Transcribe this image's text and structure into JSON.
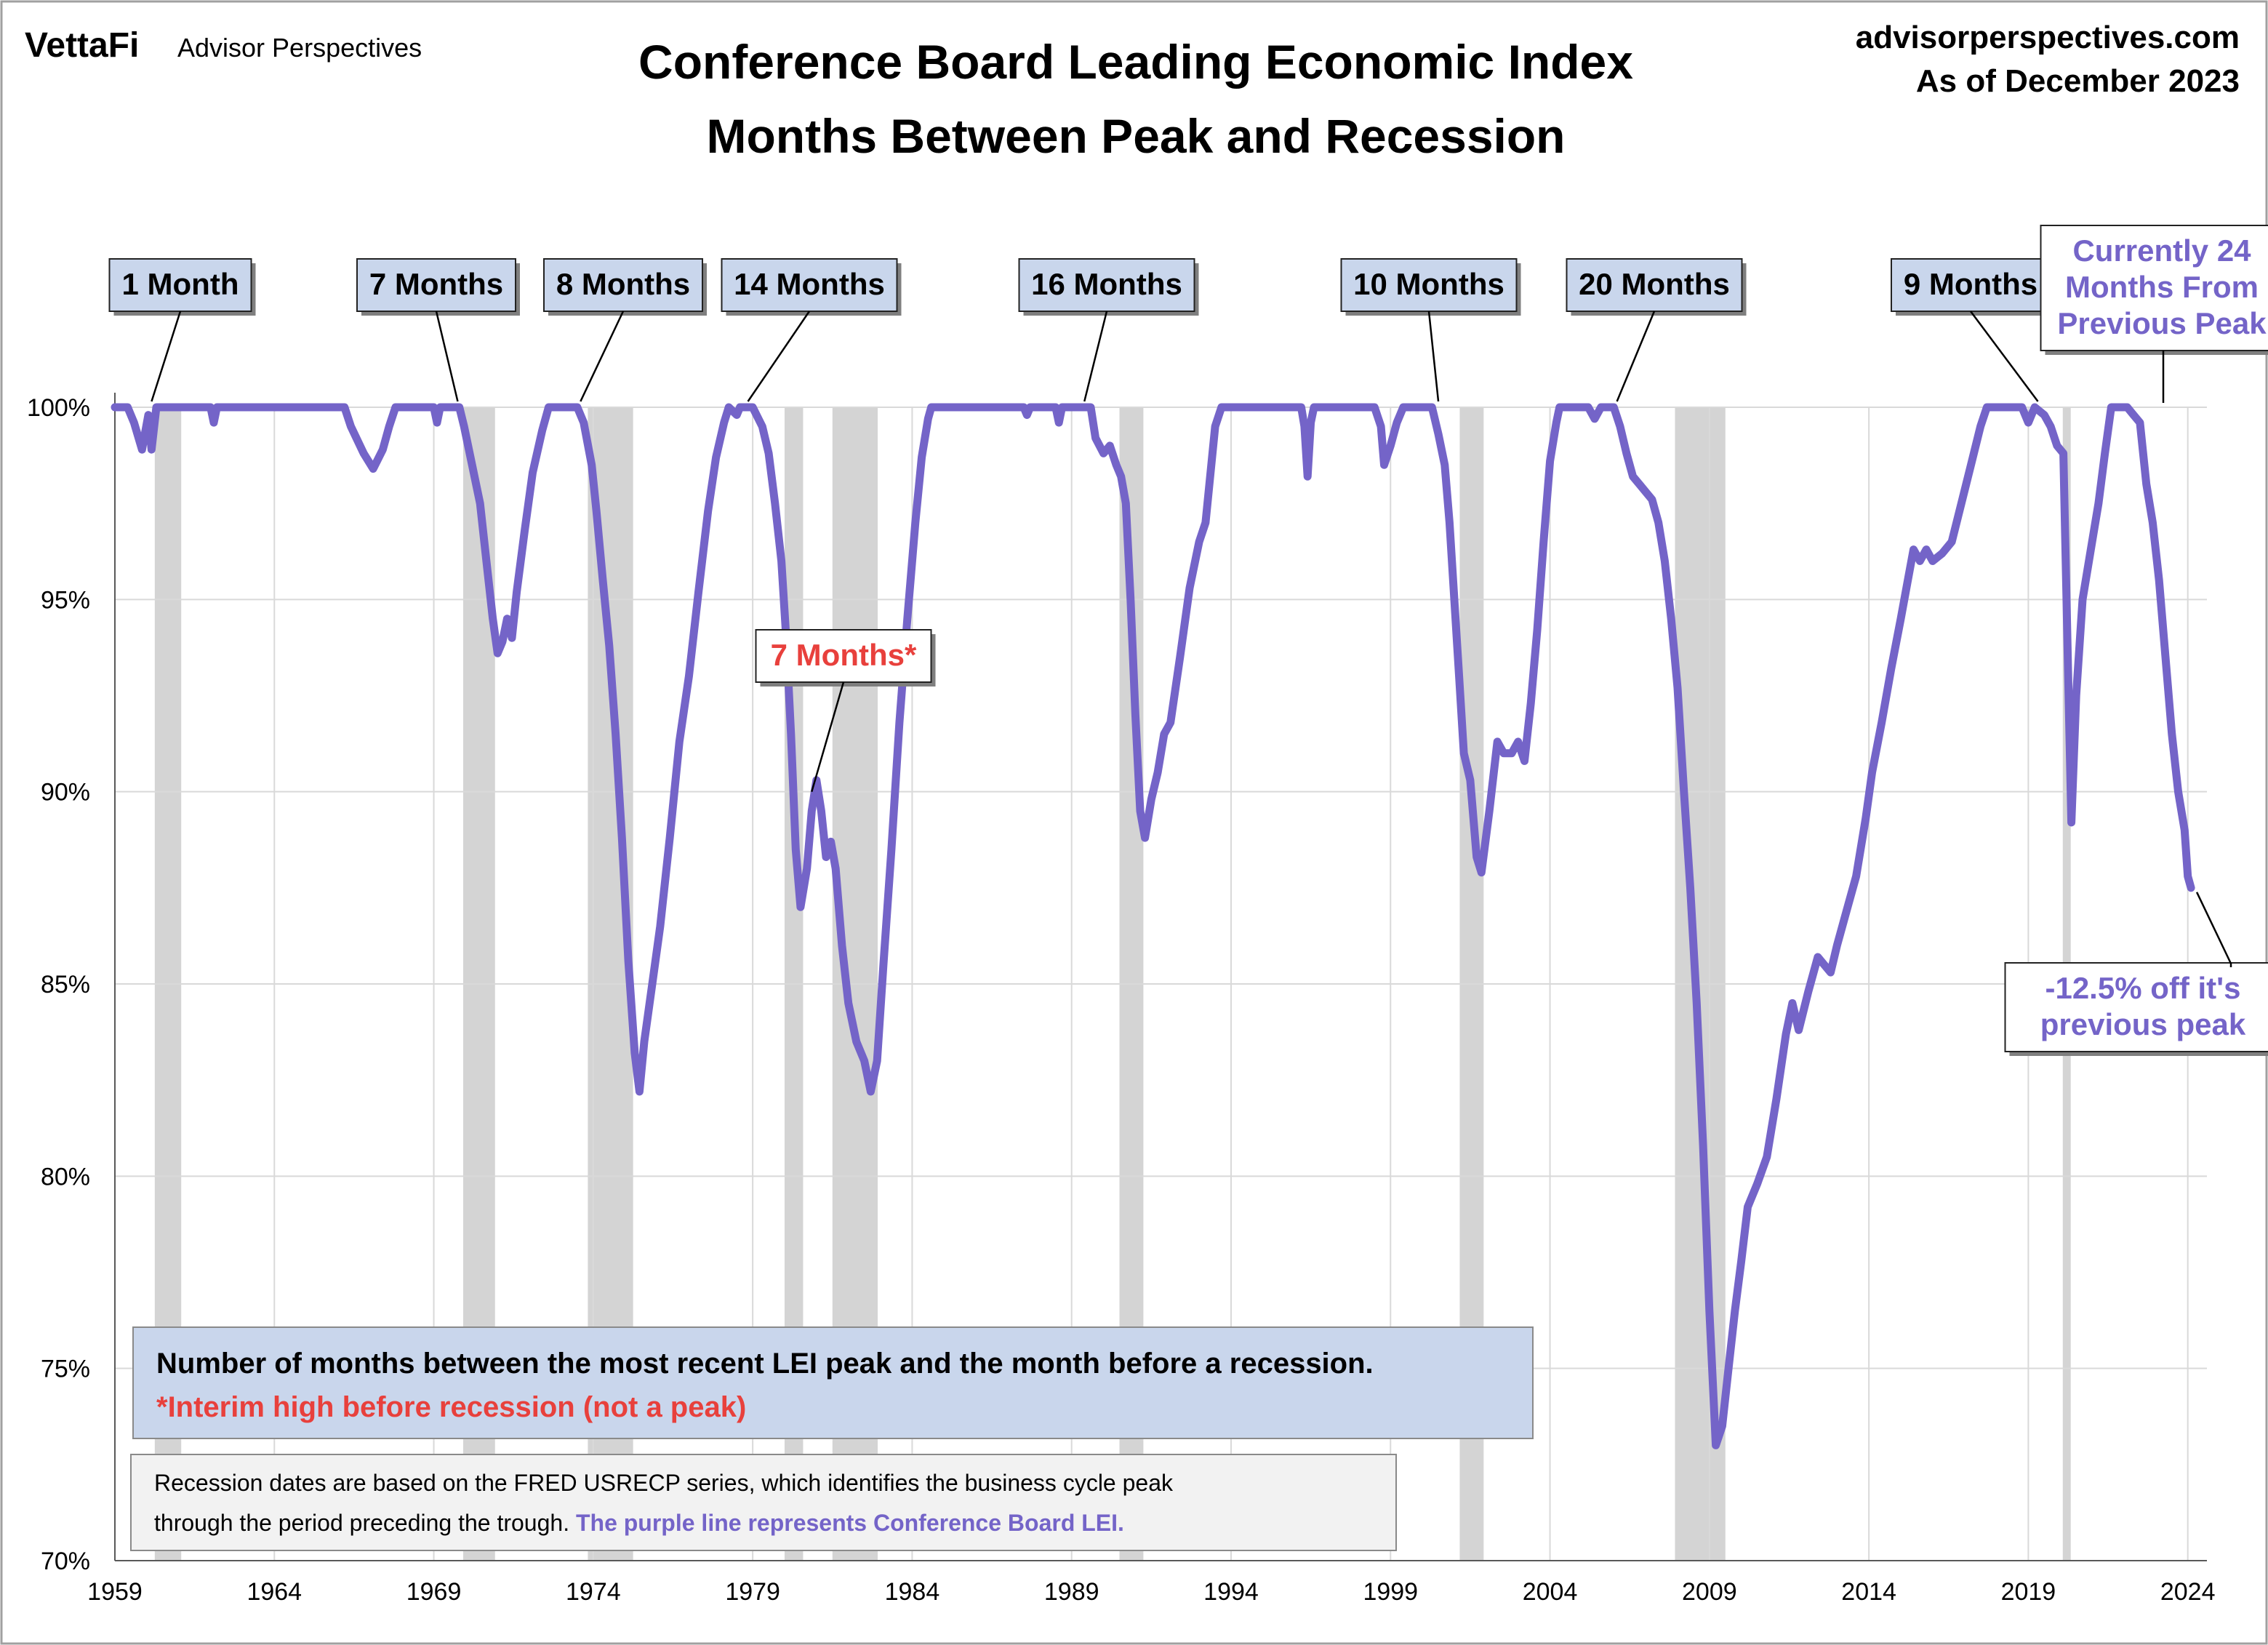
{
  "header": {
    "brand": "VettaFi",
    "brand_sub": "Advisor Perspectives",
    "site": "advisorperspectives.com",
    "as_of": "As of December 2023"
  },
  "colors": {
    "line": "#7464c8",
    "recession": "#d4d4d4",
    "callout_fill": "#c9d6ec",
    "red": "#e8403c",
    "grid": "#d9d9d9"
  },
  "chart_data": {
    "type": "line",
    "title": "Conference Board Leading Economic Index",
    "subtitle": "Months Between Peak and Recession",
    "xlabel": "",
    "ylabel": "",
    "xlim": [
      1959,
      2024.6
    ],
    "ylim": [
      70,
      100
    ],
    "x_ticks": [
      "1959",
      "1964",
      "1969",
      "1974",
      "1979",
      "1984",
      "1989",
      "1994",
      "1999",
      "2004",
      "2009",
      "2014",
      "2019",
      "2024"
    ],
    "y_ticks": [
      "70%",
      "75%",
      "80%",
      "85%",
      "90%",
      "95%",
      "100%"
    ],
    "grid": true,
    "recessions": [
      [
        1960.25,
        1961.08
      ],
      [
        1969.92,
        1970.92
      ],
      [
        1973.83,
        1975.25
      ],
      [
        1980.0,
        1980.58
      ],
      [
        1981.5,
        1982.92
      ],
      [
        1990.5,
        1991.25
      ],
      [
        2001.17,
        2001.92
      ],
      [
        2007.92,
        2009.5
      ],
      [
        2020.08,
        2020.33
      ]
    ],
    "series": [
      {
        "values": [
          [
            1959.0,
            100
          ],
          [
            1959.4,
            100
          ],
          [
            1959.6,
            99.6
          ],
          [
            1959.85,
            98.9
          ],
          [
            1960.05,
            99.8
          ],
          [
            1960.15,
            98.9
          ],
          [
            1960.3,
            100
          ],
          [
            1960.6,
            100
          ],
          [
            1962.0,
            100
          ],
          [
            1962.1,
            99.6
          ],
          [
            1962.2,
            100
          ],
          [
            1966.2,
            100
          ],
          [
            1966.4,
            99.5
          ],
          [
            1966.8,
            98.8
          ],
          [
            1967.1,
            98.4
          ],
          [
            1967.4,
            98.9
          ],
          [
            1967.6,
            99.5
          ],
          [
            1967.8,
            100
          ],
          [
            1969.0,
            100
          ],
          [
            1969.1,
            99.6
          ],
          [
            1969.2,
            100
          ],
          [
            1969.8,
            100
          ],
          [
            1969.95,
            99.5
          ],
          [
            1970.2,
            98.5
          ],
          [
            1970.45,
            97.5
          ],
          [
            1970.65,
            96.0
          ],
          [
            1970.85,
            94.5
          ],
          [
            1971.0,
            93.6
          ],
          [
            1971.15,
            93.9
          ],
          [
            1971.3,
            94.5
          ],
          [
            1971.45,
            94.0
          ],
          [
            1971.6,
            95.2
          ],
          [
            1971.85,
            96.8
          ],
          [
            1972.1,
            98.3
          ],
          [
            1972.4,
            99.4
          ],
          [
            1972.6,
            100
          ],
          [
            1973.5,
            100
          ],
          [
            1973.7,
            99.6
          ],
          [
            1973.95,
            98.5
          ],
          [
            1974.1,
            97.3
          ],
          [
            1974.3,
            95.5
          ],
          [
            1974.5,
            93.8
          ],
          [
            1974.7,
            91.5
          ],
          [
            1974.9,
            88.8
          ],
          [
            1975.1,
            85.6
          ],
          [
            1975.3,
            83.2
          ],
          [
            1975.45,
            82.2
          ],
          [
            1975.6,
            83.5
          ],
          [
            1975.85,
            85.0
          ],
          [
            1976.1,
            86.5
          ],
          [
            1976.4,
            88.8
          ],
          [
            1976.7,
            91.3
          ],
          [
            1977.0,
            93.0
          ],
          [
            1977.3,
            95.2
          ],
          [
            1977.6,
            97.3
          ],
          [
            1977.85,
            98.7
          ],
          [
            1978.1,
            99.6
          ],
          [
            1978.25,
            100
          ],
          [
            1978.5,
            99.8
          ],
          [
            1978.6,
            100
          ],
          [
            1979.0,
            100
          ],
          [
            1979.3,
            99.5
          ],
          [
            1979.5,
            98.8
          ],
          [
            1979.7,
            97.5
          ],
          [
            1979.9,
            96.0
          ],
          [
            1980.05,
            94.0
          ],
          [
            1980.2,
            91.5
          ],
          [
            1980.35,
            88.5
          ],
          [
            1980.5,
            87.0
          ],
          [
            1980.7,
            88.0
          ],
          [
            1980.85,
            89.5
          ],
          [
            1981.0,
            90.3
          ],
          [
            1981.15,
            89.5
          ],
          [
            1981.3,
            88.3
          ],
          [
            1981.45,
            88.7
          ],
          [
            1981.6,
            88.0
          ],
          [
            1981.8,
            86.0
          ],
          [
            1982.0,
            84.5
          ],
          [
            1982.25,
            83.5
          ],
          [
            1982.5,
            83.0
          ],
          [
            1982.7,
            82.2
          ],
          [
            1982.9,
            83.0
          ],
          [
            1983.1,
            85.5
          ],
          [
            1983.35,
            88.5
          ],
          [
            1983.6,
            91.8
          ],
          [
            1983.85,
            94.5
          ],
          [
            1984.1,
            97.0
          ],
          [
            1984.3,
            98.7
          ],
          [
            1984.5,
            99.7
          ],
          [
            1984.6,
            100
          ],
          [
            1987.5,
            100
          ],
          [
            1987.6,
            99.8
          ],
          [
            1987.7,
            100
          ],
          [
            1988.5,
            100
          ],
          [
            1988.6,
            99.6
          ],
          [
            1988.7,
            100
          ],
          [
            1989.6,
            100
          ],
          [
            1989.75,
            99.2
          ],
          [
            1990.0,
            98.8
          ],
          [
            1990.2,
            99.0
          ],
          [
            1990.4,
            98.5
          ],
          [
            1990.55,
            98.2
          ],
          [
            1990.7,
            97.5
          ],
          [
            1990.85,
            95.0
          ],
          [
            1991.0,
            92.0
          ],
          [
            1991.15,
            89.5
          ],
          [
            1991.3,
            88.8
          ],
          [
            1991.5,
            89.8
          ],
          [
            1991.7,
            90.5
          ],
          [
            1991.9,
            91.5
          ],
          [
            1992.1,
            91.8
          ],
          [
            1992.4,
            93.5
          ],
          [
            1992.7,
            95.3
          ],
          [
            1993.0,
            96.5
          ],
          [
            1993.2,
            97.0
          ],
          [
            1993.5,
            99.5
          ],
          [
            1993.7,
            100
          ],
          [
            1996.2,
            100
          ],
          [
            1996.3,
            99.5
          ],
          [
            1996.4,
            98.2
          ],
          [
            1996.5,
            99.6
          ],
          [
            1996.6,
            100
          ],
          [
            1998.5,
            100
          ],
          [
            1998.7,
            99.5
          ],
          [
            1998.8,
            98.5
          ],
          [
            1999.0,
            99.0
          ],
          [
            1999.2,
            99.6
          ],
          [
            1999.4,
            100
          ],
          [
            2000.3,
            100
          ],
          [
            2000.5,
            99.3
          ],
          [
            2000.7,
            98.5
          ],
          [
            2000.85,
            97.0
          ],
          [
            2001.0,
            95.0
          ],
          [
            2001.15,
            93.0
          ],
          [
            2001.3,
            91.0
          ],
          [
            2001.5,
            90.3
          ],
          [
            2001.7,
            88.3
          ],
          [
            2001.85,
            87.9
          ],
          [
            2002.1,
            89.5
          ],
          [
            2002.35,
            91.3
          ],
          [
            2002.55,
            91.0
          ],
          [
            2002.8,
            91.0
          ],
          [
            2003.0,
            91.3
          ],
          [
            2003.2,
            90.8
          ],
          [
            2003.4,
            92.3
          ],
          [
            2003.6,
            94.2
          ],
          [
            2003.8,
            96.5
          ],
          [
            2004.0,
            98.6
          ],
          [
            2004.2,
            99.6
          ],
          [
            2004.3,
            100
          ],
          [
            2005.2,
            100
          ],
          [
            2005.4,
            99.7
          ],
          [
            2005.6,
            100
          ],
          [
            2006.0,
            100
          ],
          [
            2006.2,
            99.5
          ],
          [
            2006.4,
            98.8
          ],
          [
            2006.6,
            98.2
          ],
          [
            2006.8,
            98.0
          ],
          [
            2007.0,
            97.8
          ],
          [
            2007.2,
            97.6
          ],
          [
            2007.4,
            97.0
          ],
          [
            2007.6,
            96.0
          ],
          [
            2007.8,
            94.5
          ],
          [
            2008.0,
            92.7
          ],
          [
            2008.2,
            90.0
          ],
          [
            2008.4,
            87.5
          ],
          [
            2008.6,
            84.5
          ],
          [
            2008.8,
            80.8
          ],
          [
            2009.0,
            76.5
          ],
          [
            2009.2,
            73.0
          ],
          [
            2009.4,
            73.5
          ],
          [
            2009.6,
            75.0
          ],
          [
            2009.8,
            76.5
          ],
          [
            2010.0,
            77.8
          ],
          [
            2010.2,
            79.2
          ],
          [
            2010.5,
            79.8
          ],
          [
            2010.8,
            80.5
          ],
          [
            2011.1,
            82.0
          ],
          [
            2011.4,
            83.7
          ],
          [
            2011.6,
            84.5
          ],
          [
            2011.8,
            83.8
          ],
          [
            2012.1,
            84.8
          ],
          [
            2012.4,
            85.7
          ],
          [
            2012.6,
            85.5
          ],
          [
            2012.8,
            85.3
          ],
          [
            2013.0,
            86.0
          ],
          [
            2013.3,
            86.9
          ],
          [
            2013.6,
            87.8
          ],
          [
            2013.9,
            89.3
          ],
          [
            2014.1,
            90.5
          ],
          [
            2014.4,
            91.8
          ],
          [
            2014.7,
            93.2
          ],
          [
            2015.0,
            94.5
          ],
          [
            2015.2,
            95.4
          ],
          [
            2015.4,
            96.3
          ],
          [
            2015.6,
            96.0
          ],
          [
            2015.8,
            96.3
          ],
          [
            2016.0,
            96.0
          ],
          [
            2016.3,
            96.2
          ],
          [
            2016.6,
            96.5
          ],
          [
            2016.9,
            97.5
          ],
          [
            2017.2,
            98.5
          ],
          [
            2017.5,
            99.5
          ],
          [
            2017.7,
            100
          ],
          [
            2018.8,
            100
          ],
          [
            2019.0,
            99.6
          ],
          [
            2019.2,
            100
          ],
          [
            2019.5,
            99.8
          ],
          [
            2019.7,
            99.5
          ],
          [
            2019.9,
            99.0
          ],
          [
            2020.1,
            98.8
          ],
          [
            2020.25,
            93.0
          ],
          [
            2020.35,
            89.2
          ],
          [
            2020.5,
            92.5
          ],
          [
            2020.7,
            95.0
          ],
          [
            2021.0,
            96.5
          ],
          [
            2021.2,
            97.5
          ],
          [
            2021.4,
            98.8
          ],
          [
            2021.6,
            100
          ],
          [
            2022.1,
            100
          ],
          [
            2022.3,
            99.8
          ],
          [
            2022.5,
            99.6
          ],
          [
            2022.7,
            98.0
          ],
          [
            2022.9,
            97.0
          ],
          [
            2023.1,
            95.5
          ],
          [
            2023.3,
            93.5
          ],
          [
            2023.5,
            91.5
          ],
          [
            2023.7,
            90.0
          ],
          [
            2023.9,
            89.0
          ],
          [
            2024.0,
            87.8
          ],
          [
            2024.1,
            87.5
          ]
        ]
      }
    ],
    "callouts": [
      {
        "text": "1 Month",
        "anchor_x": 1960.15,
        "anchor_y": 100
      },
      {
        "text": "7 Months",
        "anchor_x": 1969.75,
        "anchor_y": 100
      },
      {
        "text": "8 Months",
        "anchor_x": 1973.6,
        "anchor_y": 100
      },
      {
        "text": "14 Months",
        "anchor_x": 1978.85,
        "anchor_y": 100
      },
      {
        "text": "16 Months",
        "anchor_x": 1989.4,
        "anchor_y": 100
      },
      {
        "text": "10 Months",
        "anchor_x": 2000.5,
        "anchor_y": 100
      },
      {
        "text": "20 Months",
        "anchor_x": 2006.1,
        "anchor_y": 100
      },
      {
        "text": "9 Months",
        "anchor_x": 2019.3,
        "anchor_y": 100
      }
    ],
    "interim_callout": {
      "text": "7 Months*",
      "anchor_x": 1980.85,
      "anchor_y": 90.0
    },
    "current_callout": {
      "line1": "Currently 24",
      "line2": "Months From",
      "line3": "Previous Peak"
    },
    "drawdown_callout": {
      "line1": "-12.5% off it's",
      "line2": "previous peak"
    }
  },
  "notes": {
    "main": "Number of months between the most recent LEI peak and the month before a recession.",
    "footnote": "*Interim high before recession (not a peak)",
    "source_line1": "Recession dates are based on the FRED USRECP series, which identifies the business cycle peak",
    "source_line2": "through the period preceding the trough.",
    "source_purple": " The purple line represents Conference Board LEI."
  }
}
